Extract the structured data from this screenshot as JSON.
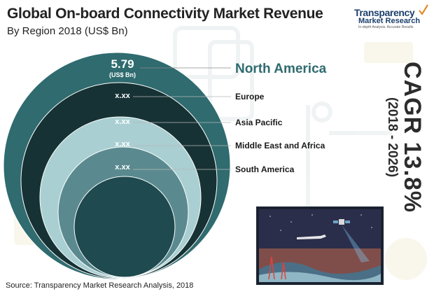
{
  "header": {
    "title": "Global On-board Connectivity Market Revenue",
    "subtitle": "By Region 2018 (US$ Bn)"
  },
  "logo": {
    "name_line1": "Transparency",
    "name_line2": "Market Research",
    "tagline": "In-depth Analysis. Accurate Results"
  },
  "cagr": {
    "label": "CAGR 13.8%",
    "years": "(2018 - 2026)"
  },
  "source": "Source: Transparency Market Research Analysis, 2018",
  "colors": {
    "north_america": "#2f6b6f",
    "europe": "#173234",
    "asia_pacific": "#a9cfd2",
    "middle_east_africa": "#5a8a8f",
    "south_america": "#1f4a4f",
    "highlight_text": "#2f6b6f"
  },
  "chart_data": {
    "type": "nested-circles",
    "title": "Global On-board Connectivity Market Revenue",
    "subtitle": "By Region 2018 (US$ Bn)",
    "unit": "(US$ Bn)",
    "categories": [
      "North America",
      "Europe",
      "Asia Pacific",
      "Middle East and Africa",
      "South America"
    ],
    "value_labels": [
      "5.79",
      "x.xx",
      "x.xx",
      "x.xx",
      "x.xx"
    ],
    "values": [
      5.79,
      null,
      null,
      null,
      null
    ],
    "highlighted": "North America"
  }
}
